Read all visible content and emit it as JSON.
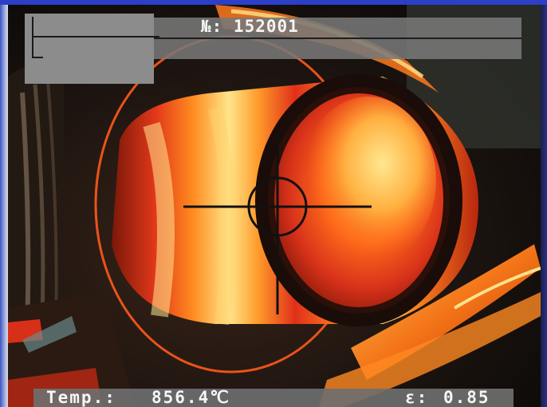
{
  "camera": {
    "serial_label": "№: 152001"
  },
  "readouts": {
    "temp_label": "Temp.:",
    "temp_value": "856.4℃",
    "emissivity_label": "ε:",
    "emissivity_value": "0.85"
  },
  "colors": {
    "title_strip": "#2b3fc8",
    "hud_panel": "#8c8c8c",
    "crosshair": "#111111",
    "hot_yellow": "#ffe27a",
    "hot_orange": "#ff7a1e",
    "hot_red": "#e8321a"
  },
  "icons": {
    "crosshair": "crosshair-icon"
  }
}
